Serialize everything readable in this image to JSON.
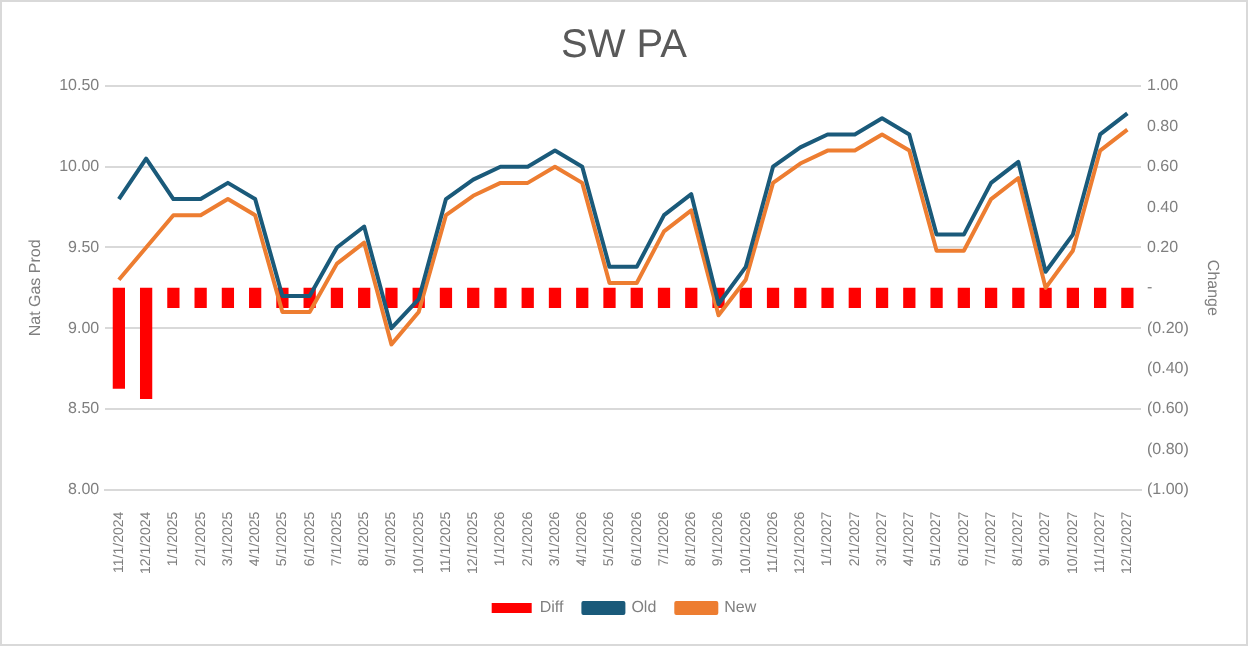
{
  "chart_data": {
    "type": "line",
    "title": "SW PA",
    "ylabel": "Nat Gas Prod",
    "y2label": "Change",
    "categories": [
      "11/1/2024",
      "12/1/2024",
      "1/1/2025",
      "2/1/2025",
      "3/1/2025",
      "4/1/2025",
      "5/1/2025",
      "6/1/2025",
      "7/1/2025",
      "8/1/2025",
      "9/1/2025",
      "10/1/2025",
      "11/1/2025",
      "12/1/2025",
      "1/1/2026",
      "2/1/2026",
      "3/1/2026",
      "4/1/2026",
      "5/1/2026",
      "6/1/2026",
      "7/1/2026",
      "8/1/2026",
      "9/1/2026",
      "10/1/2026",
      "11/1/2026",
      "12/1/2026",
      "1/1/2027",
      "2/1/2027",
      "3/1/2027",
      "4/1/2027",
      "5/1/2027",
      "6/1/2027",
      "7/1/2027",
      "8/1/2027",
      "9/1/2027",
      "10/1/2027",
      "11/1/2027",
      "12/1/2027"
    ],
    "series": [
      {
        "name": "Diff",
        "type": "bar",
        "axis": "y2",
        "color": "#ff0000",
        "values": [
          -0.5,
          -0.55,
          -0.1,
          -0.1,
          -0.1,
          -0.1,
          -0.1,
          -0.1,
          -0.1,
          -0.1,
          -0.1,
          -0.1,
          -0.1,
          -0.1,
          -0.1,
          -0.1,
          -0.1,
          -0.1,
          -0.1,
          -0.1,
          -0.1,
          -0.1,
          -0.1,
          -0.1,
          -0.1,
          -0.1,
          -0.1,
          -0.1,
          -0.1,
          -0.1,
          -0.1,
          -0.1,
          -0.1,
          -0.1,
          -0.1,
          -0.1,
          -0.1,
          -0.1
        ]
      },
      {
        "name": "Old",
        "color": "#1a5a7a",
        "values": [
          9.8,
          10.05,
          9.8,
          9.8,
          9.9,
          9.8,
          9.2,
          9.2,
          9.5,
          9.63,
          9.0,
          9.18,
          9.8,
          9.92,
          10.0,
          10.0,
          10.1,
          10.0,
          9.38,
          9.38,
          9.7,
          9.83,
          9.15,
          9.38,
          10.0,
          10.12,
          10.2,
          10.2,
          10.3,
          10.2,
          9.58,
          9.58,
          9.9,
          10.03,
          9.35,
          9.58,
          10.2,
          10.33
        ]
      },
      {
        "name": "New",
        "color": "#ed7d31",
        "values": [
          9.3,
          9.5,
          9.7,
          9.7,
          9.8,
          9.7,
          9.1,
          9.1,
          9.4,
          9.53,
          8.9,
          9.1,
          9.7,
          9.82,
          9.9,
          9.9,
          10.0,
          9.9,
          9.28,
          9.28,
          9.6,
          9.73,
          9.08,
          9.3,
          9.9,
          10.02,
          10.1,
          10.1,
          10.2,
          10.1,
          9.48,
          9.48,
          9.8,
          9.93,
          9.25,
          9.48,
          10.1,
          10.23
        ]
      }
    ],
    "ylim": [
      8,
      10.5
    ],
    "yticks": [
      {
        "value": 8,
        "label": "8.00"
      },
      {
        "value": 8.5,
        "label": "8.50"
      },
      {
        "value": 9,
        "label": "9.00"
      },
      {
        "value": 9.5,
        "label": "9.50"
      },
      {
        "value": 10,
        "label": "10.00"
      },
      {
        "value": 10.5,
        "label": "10.50"
      }
    ],
    "y2lim": [
      -1,
      1
    ],
    "y2ticks": [
      {
        "value": -1,
        "label": "(1.00)"
      },
      {
        "value": -0.8,
        "label": "(0.80)"
      },
      {
        "value": -0.6,
        "label": "(0.60)"
      },
      {
        "value": -0.4,
        "label": "(0.40)"
      },
      {
        "value": -0.2,
        "label": "(0.20)"
      },
      {
        "value": 0,
        "label": "-"
      },
      {
        "value": 0.2,
        "label": "0.20"
      },
      {
        "value": 0.4,
        "label": "0.40"
      },
      {
        "value": 0.6,
        "label": "0.60"
      },
      {
        "value": 0.8,
        "label": "0.80"
      },
      {
        "value": 1,
        "label": "1.00"
      }
    ],
    "grid": "y",
    "legend": "bottom",
    "marker": "none",
    "line_style": "solid"
  }
}
